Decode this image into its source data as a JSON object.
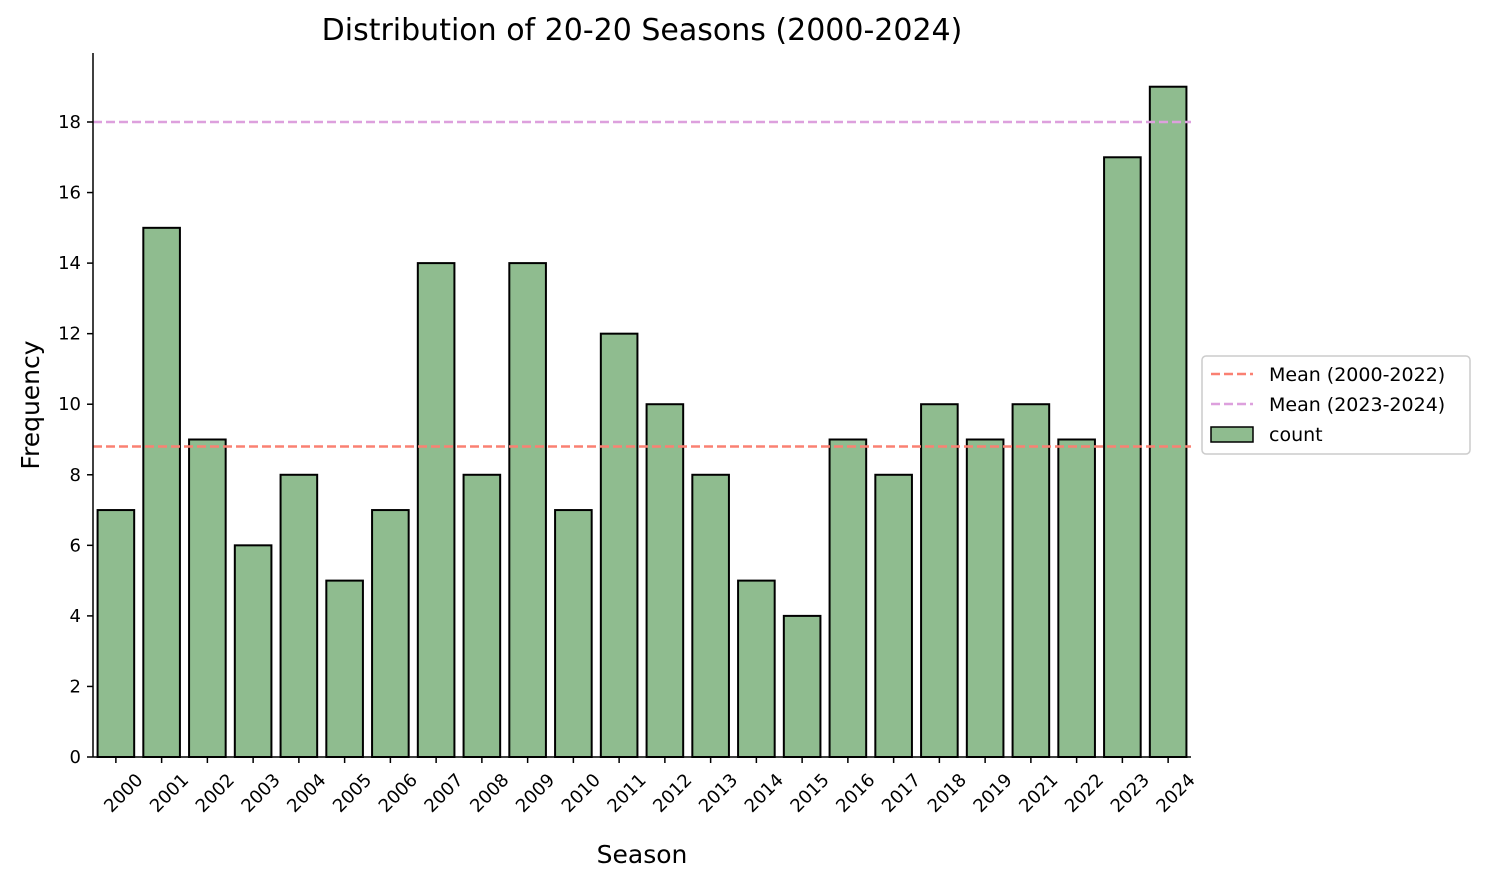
{
  "chart_data": {
    "type": "bar",
    "title": "Distribution of 20-20 Seasons (2000-2024)",
    "xlabel": "Season",
    "ylabel": "Frequency",
    "categories": [
      "2000",
      "2001",
      "2002",
      "2003",
      "2004",
      "2005",
      "2006",
      "2007",
      "2008",
      "2009",
      "2010",
      "2011",
      "2012",
      "2013",
      "2014",
      "2015",
      "2016",
      "2017",
      "2018",
      "2019",
      "2021",
      "2022",
      "2023",
      "2024"
    ],
    "values": [
      7,
      15,
      9,
      6,
      8,
      5,
      7,
      14,
      8,
      14,
      7,
      12,
      10,
      8,
      5,
      4,
      9,
      8,
      10,
      9,
      10,
      9,
      17,
      19
    ],
    "series_name": "count",
    "ylim": [
      0,
      20
    ],
    "yticks": [
      0,
      2,
      4,
      6,
      8,
      10,
      12,
      14,
      16,
      18
    ],
    "grid": false,
    "legend_position": "center-right outside",
    "bar_color": "#8fbc8f",
    "bar_edge_color": "#000000",
    "reference_lines": [
      {
        "label": "Mean (2000-2022)",
        "value": 8.8,
        "color": "#fa8072",
        "style": "dashed"
      },
      {
        "label": "Mean (2023-2024)",
        "value": 18.0,
        "color": "#dda0dd",
        "style": "dashed"
      }
    ]
  }
}
